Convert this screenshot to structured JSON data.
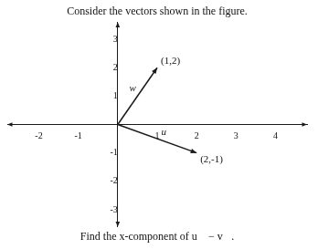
{
  "chart_data": {
    "type": "vector",
    "title": "Consider the vectors shown in the figure.",
    "subtitle": "Find the x-component of u⃗ − v⃗.",
    "series": [
      {
        "name": "w",
        "x": 1,
        "y": 2,
        "label": "(1,2)"
      },
      {
        "name": "u",
        "x": 2,
        "y": -1,
        "label": "(2,-1)"
      }
    ],
    "color": "#1a1a1a",
    "xlim": [
      -2.8,
      4.8
    ],
    "ylim": [
      -3.6,
      3.6
    ],
    "xticks": [
      -2,
      -1,
      1,
      2,
      3,
      4
    ],
    "yticks": [
      -3,
      -2,
      -1,
      1,
      2,
      3
    ],
    "grid": false
  }
}
